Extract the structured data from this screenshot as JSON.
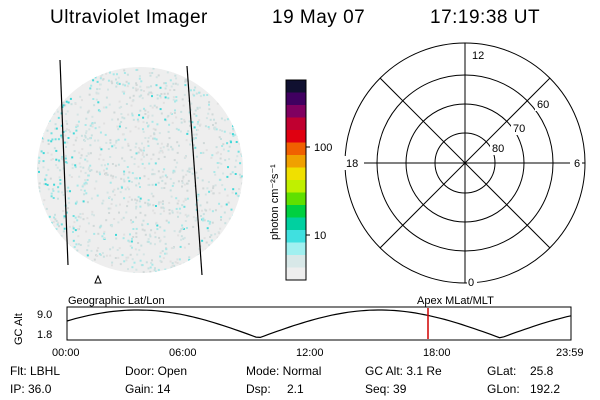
{
  "header": {
    "instrument": "Ultraviolet Imager",
    "date": "19 May 07",
    "time": "17:19:38 UT"
  },
  "colorbar": {
    "unit_label": "photon cm⁻²s⁻¹",
    "ticks": [
      "100",
      "10"
    ],
    "colors": [
      "#101030",
      "#400060",
      "#800060",
      "#c00030",
      "#e00010",
      "#f06000",
      "#f0a000",
      "#f0e000",
      "#c0f000",
      "#60e000",
      "#00d040",
      "#00d0a0",
      "#40e0e0",
      "#a0f0f0",
      "#d8e8e8",
      "#eeeeee"
    ]
  },
  "polar": {
    "mlt_labels": {
      "top": "12",
      "right": "6",
      "bottom": "0",
      "left": "18"
    },
    "lat_labels": [
      "60",
      "70",
      "80"
    ]
  },
  "timeline": {
    "left_label": "Geographic Lat/Lon",
    "right_label": "Apex  MLat/MLT",
    "y_title": "GC Alt",
    "y_ticks": [
      "9.0",
      "1.8"
    ],
    "x_ticks": [
      "00:00",
      "06:00",
      "12:00",
      "18:00",
      "23:59"
    ],
    "marker_color": "#d00000"
  },
  "info": {
    "flt": "Flt: LBHL",
    "ip": "IP: 36.0",
    "door": "Door: Open",
    "gain": "Gain: 14",
    "mode": "Mode: Normal",
    "dsp_label": "Dsp:",
    "dsp_value": "2.1",
    "gcalt": "GC Alt: 3.1 Re",
    "seq": "Seq: 39",
    "glat_label": "GLat:",
    "glat_value": "25.8",
    "glon_label": "GLon:",
    "glon_value": "192.2"
  }
}
